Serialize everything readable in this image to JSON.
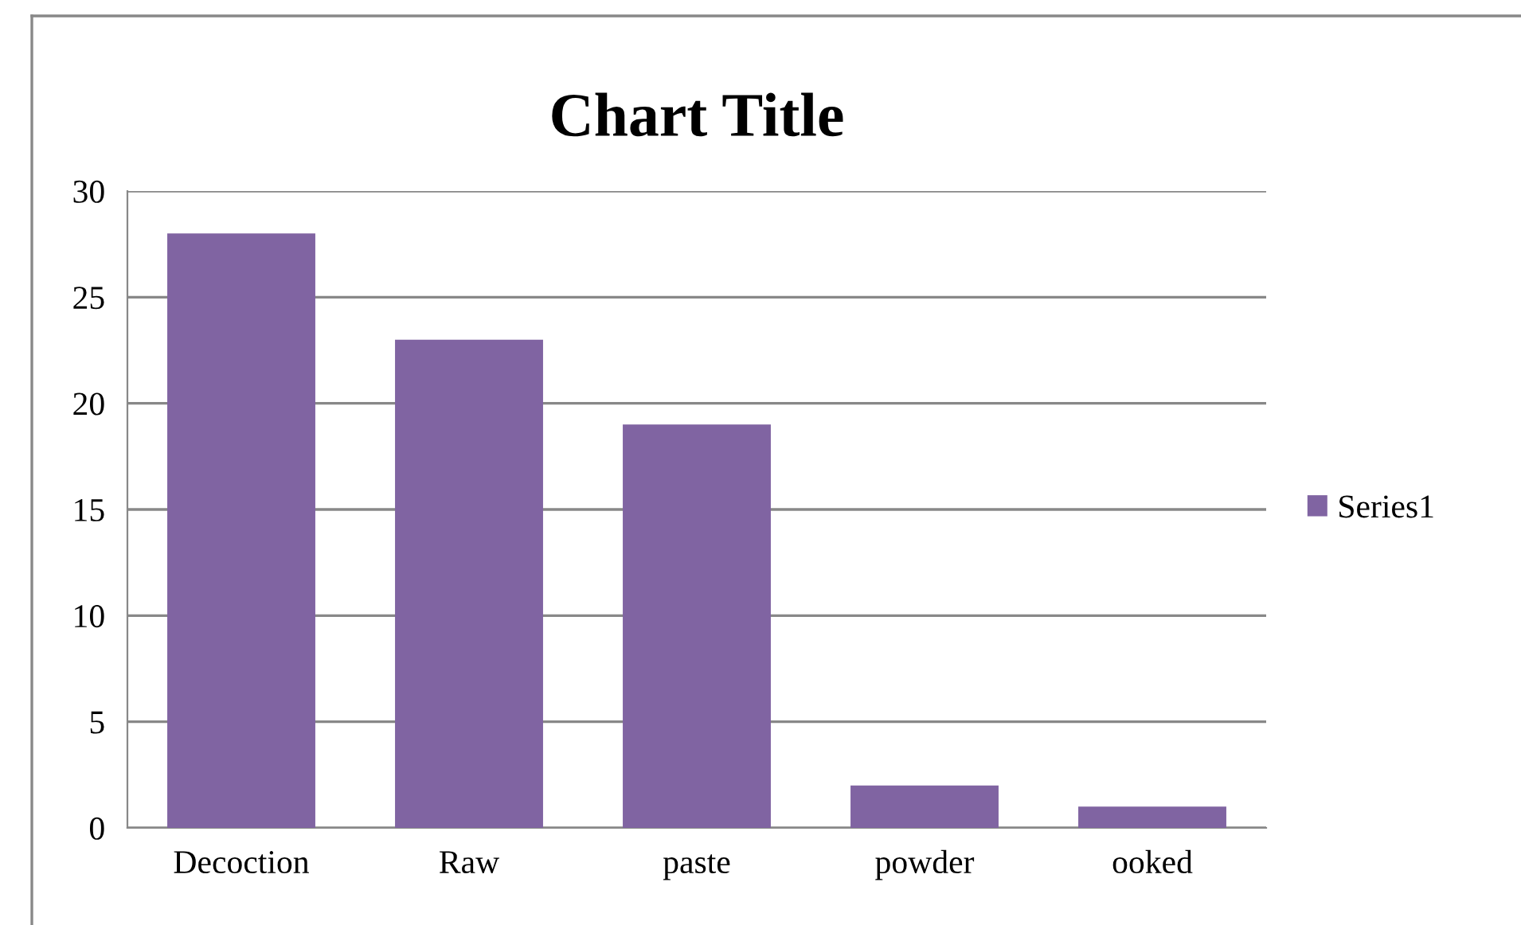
{
  "chart_data": {
    "type": "bar",
    "title": "Chart Title",
    "categories": [
      "Decoction",
      "Raw",
      "paste",
      "powder",
      "ooked"
    ],
    "series": [
      {
        "name": "Series1",
        "color": "#8064a2",
        "values": [
          28,
          23,
          19,
          2,
          1
        ]
      }
    ],
    "ylim": [
      0,
      30
    ],
    "yticks": [
      0,
      5,
      10,
      15,
      20,
      25,
      30
    ],
    "grid": "y",
    "legend": "right"
  }
}
